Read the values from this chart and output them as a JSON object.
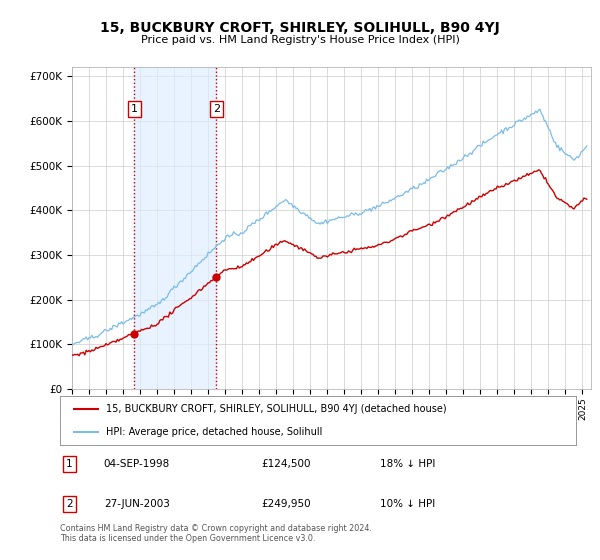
{
  "title": "15, BUCKBURY CROFT, SHIRLEY, SOLIHULL, B90 4YJ",
  "subtitle": "Price paid vs. HM Land Registry's House Price Index (HPI)",
  "purchase1": {
    "date_num": 1998.67,
    "price": 124500,
    "label": "1",
    "date_str": "04-SEP-1998",
    "pct": "18% ↓ HPI"
  },
  "purchase2": {
    "date_num": 2003.49,
    "price": 249950,
    "label": "2",
    "date_str": "27-JUN-2003",
    "pct": "10% ↓ HPI"
  },
  "hpi_color": "#7bbce8",
  "price_color": "#cc0000",
  "annotation_box_color": "#cc0000",
  "shaded_region_color": "#ddeeff",
  "grid_color": "#cccccc",
  "background_color": "#ffffff",
  "ylim": [
    0,
    720000
  ],
  "xlim_start": 1995.0,
  "xlim_end": 2025.5,
  "yticks": [
    0,
    100000,
    200000,
    300000,
    400000,
    500000,
    600000,
    700000
  ],
  "legend_line1": "15, BUCKBURY CROFT, SHIRLEY, SOLIHULL, B90 4YJ (detached house)",
  "legend_line2": "HPI: Average price, detached house, Solihull",
  "footer": "Contains HM Land Registry data © Crown copyright and database right 2024.\nThis data is licensed under the Open Government Licence v3.0.",
  "table_rows": [
    {
      "num": "1",
      "date": "04-SEP-1998",
      "price": "£124,500",
      "pct": "18% ↓ HPI"
    },
    {
      "num": "2",
      "date": "27-JUN-2003",
      "price": "£249,950",
      "pct": "10% ↓ HPI"
    }
  ]
}
